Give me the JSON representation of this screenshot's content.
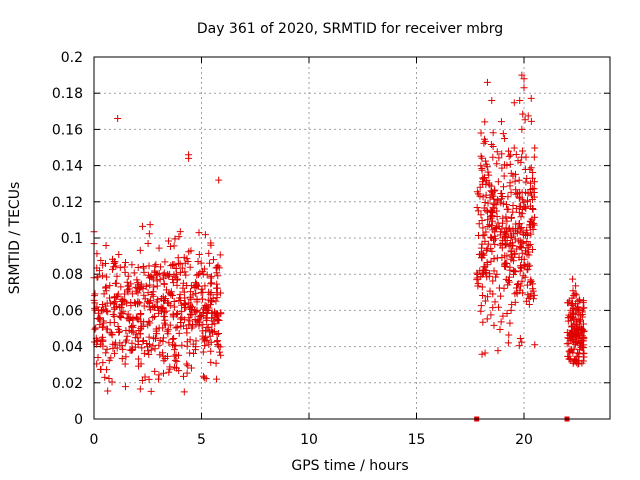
{
  "chart_data": {
    "type": "scatter",
    "title": "Day 361 of 2020, SRMTID for receiver mbrg",
    "xlabel": "GPS time / hours",
    "ylabel": "SRMTID / TECUs",
    "xlim": [
      0,
      24
    ],
    "ylim": [
      0,
      0.2
    ],
    "x_ticks": [
      0,
      5,
      10,
      15,
      20
    ],
    "x_tick_labels": [
      "0",
      "5",
      "10",
      "15",
      "20"
    ],
    "y_ticks": [
      0,
      0.02,
      0.04,
      0.06,
      0.08,
      0.1,
      0.12,
      0.14,
      0.16,
      0.18,
      0.2
    ],
    "y_tick_labels": [
      "0",
      "0.02",
      "0.04",
      "0.06",
      "0.08",
      "0.1",
      "0.12",
      "0.14",
      "0.16",
      "0.18",
      "0.2"
    ],
    "grid": true,
    "marker": "+",
    "color": "#e00000",
    "clusters": [
      {
        "name": "cluster-1",
        "x_range": [
          0.0,
          5.9
        ],
        "y_center": 0.06,
        "y_spread": 0.018,
        "y_min": 0.015,
        "y_max": 0.166,
        "count": 620
      },
      {
        "name": "cluster-2",
        "x_range": [
          17.8,
          20.5
        ],
        "y_center": 0.105,
        "y_spread": 0.028,
        "y_min": 0.033,
        "y_max": 0.19,
        "count": 420
      },
      {
        "name": "cluster-3",
        "x_range": [
          22.0,
          22.8
        ],
        "y_center": 0.05,
        "y_spread": 0.011,
        "y_min": 0.026,
        "y_max": 0.084,
        "count": 160
      }
    ],
    "outliers": [
      {
        "x": 1.1,
        "y": 0.166
      },
      {
        "x": 4.4,
        "y": 0.146
      },
      {
        "x": 4.4,
        "y": 0.144
      },
      {
        "x": 5.8,
        "y": 0.132
      },
      {
        "x": 18.0,
        "y": 0.158
      },
      {
        "x": 18.3,
        "y": 0.186
      },
      {
        "x": 18.5,
        "y": 0.176
      },
      {
        "x": 19.9,
        "y": 0.19
      },
      {
        "x": 20.0,
        "y": 0.188
      },
      {
        "x": 20.0,
        "y": 0.183
      },
      {
        "x": 19.8,
        "y": 0.176
      },
      {
        "x": 19.9,
        "y": 0.16
      },
      {
        "x": 20.5,
        "y": 0.041
      },
      {
        "x": 4.2,
        "y": 0.015
      },
      {
        "x": 5.7,
        "y": 0.022
      },
      {
        "x": 3.0,
        "y": 0.022
      },
      {
        "x": 0.5,
        "y": 0.023
      }
    ],
    "zero_markers": [
      {
        "x": 17.8,
        "y": 0
      },
      {
        "x": 22.0,
        "y": 0
      }
    ]
  }
}
